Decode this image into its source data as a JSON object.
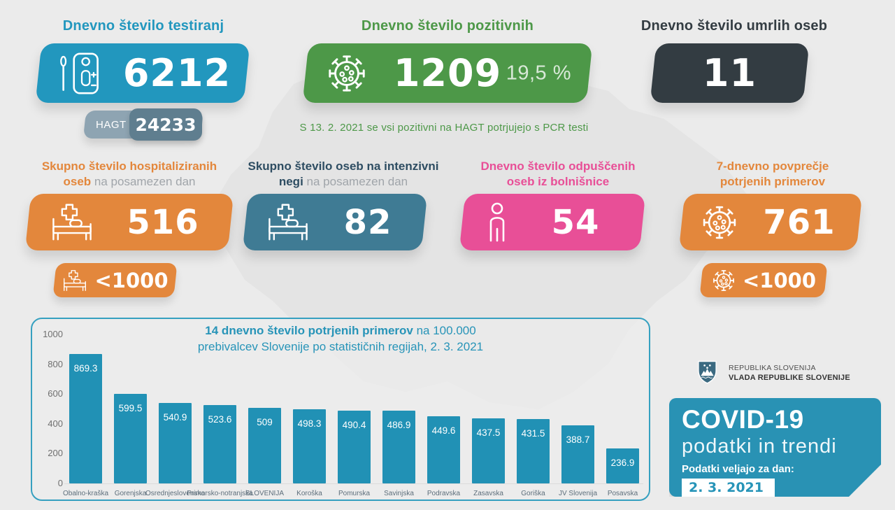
{
  "colors": {
    "teal": "#2297be",
    "teal_text": "#2794b8",
    "covid_teal": "#2992b4",
    "green": "#4d9848",
    "dark": "#333c42",
    "orange": "#e3873c",
    "steel": "#3f7b94",
    "pink": "#e84f97",
    "navy": "#2e4d62",
    "gray_light": "#a0a5aa",
    "hagt_left": "#8ea4b2",
    "hagt_right": "#5f7e8f",
    "background": "#ebebeb",
    "bar_color": "#2191b5"
  },
  "top": {
    "tests": {
      "title": "Dnevno število testiranj",
      "value": "6212",
      "badge_label": "HAGT",
      "badge_value": "24233"
    },
    "positive": {
      "title": "Dnevno število pozitivnih",
      "value": "1209",
      "percent": "19,5 %",
      "note": "S 13. 2. 2021 se vsi pozitivni na HAGT potrjujejo s PCR testi"
    },
    "deaths": {
      "title": "Dnevno število umrlih oseb",
      "value": "11"
    }
  },
  "mid": {
    "hospitalized": {
      "title_bold": "Skupno število hospitaliziranih",
      "title_bold2": "oseb",
      "title_light": "na posamezen dan",
      "value": "516",
      "badge_value": "<1000"
    },
    "icu": {
      "title_bold": "Skupno število oseb na intenzivni",
      "title_bold2": "negi",
      "title_light": "na posamezen dan",
      "value": "82"
    },
    "discharged": {
      "title_line1": "Dnevno število odpuščenih",
      "title_line2": "oseb iz bolnišnice",
      "value": "54"
    },
    "avg7": {
      "title_line1": "7-dnevno povprečje",
      "title_line2": "potrjenih primerov",
      "value": "761",
      "badge_value": "<1000"
    }
  },
  "chart_data": {
    "type": "bar",
    "title_bold": "14 dnevno število potrjenih primerov",
    "title_rest": " na 100.000",
    "title_line2": "prebivalcev Slovenije po statističnih regijah, 2. 3. 2021",
    "categories": [
      "Obalno-kraška",
      "Gorenjska",
      "Osrednjeslovenska",
      "Primorsko-notranjska",
      "SLOVENIJA",
      "Koroška",
      "Pomurska",
      "Savinjska",
      "Podravska",
      "Zasavska",
      "Goriška",
      "JV Slovenija",
      "Posavska"
    ],
    "values": [
      869.3,
      599.5,
      540.9,
      523.6,
      509,
      498.3,
      490.4,
      486.9,
      449.6,
      437.5,
      431.5,
      388.7,
      236.9
    ],
    "labels": [
      "869.3",
      "599.5",
      "540.9",
      "523.6",
      "509",
      "498.3",
      "490.4",
      "486.9",
      "449.6",
      "437.5",
      "431.5",
      "388.7",
      "236.9"
    ],
    "xlabel": "",
    "ylabel": "",
    "ylim": [
      0,
      1000
    ],
    "yticks": [
      0,
      200,
      400,
      600,
      800,
      1000
    ],
    "grid": "off",
    "legend": "none"
  },
  "footer": {
    "gov_line1": "REPUBLIKA SLOVENIJA",
    "gov_line2": "VLADA REPUBLIKE SLOVENIJE",
    "covid_title": "COVID-19",
    "covid_subtitle": "podatki in trendi",
    "covid_date_label": "Podatki veljajo za dan:",
    "covid_date": "2. 3. 2021"
  }
}
